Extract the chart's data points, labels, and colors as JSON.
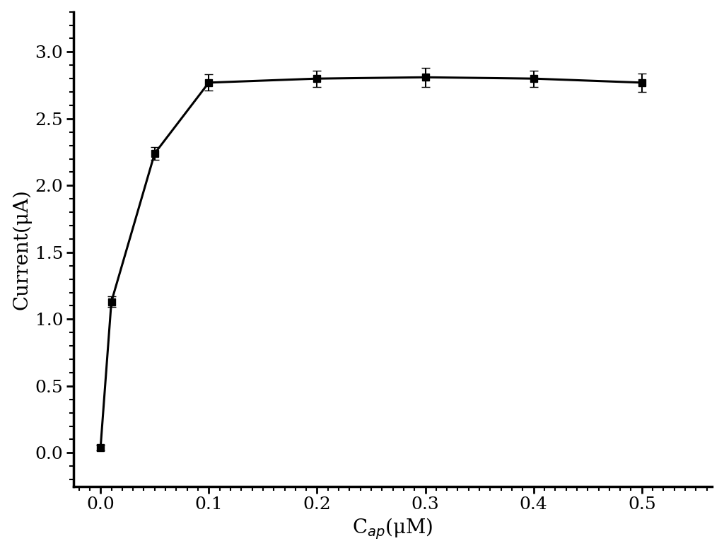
{
  "x": [
    0.0,
    0.01,
    0.05,
    0.1,
    0.2,
    0.3,
    0.4,
    0.5
  ],
  "y": [
    0.04,
    1.13,
    2.24,
    2.77,
    2.8,
    2.81,
    2.8,
    2.77
  ],
  "yerr": [
    0.02,
    0.04,
    0.05,
    0.06,
    0.06,
    0.07,
    0.06,
    0.07
  ],
  "xlabel": "C$_{ap}$(μM)",
  "ylabel": "Current(μA)",
  "xlim": [
    -0.025,
    0.565
  ],
  "ylim": [
    -0.25,
    3.3
  ],
  "xticks": [
    0.0,
    0.1,
    0.2,
    0.3,
    0.4,
    0.5
  ],
  "xtick_labels": [
    "0.0",
    "0.1",
    "0.2",
    "0.3",
    "0.4",
    "0.5"
  ],
  "yticks": [
    0.0,
    0.5,
    1.0,
    1.5,
    2.0,
    2.5,
    3.0
  ],
  "ytick_labels": [
    "0.0",
    "0.5",
    "1.0",
    "1.5",
    "2.0",
    "2.5",
    "3.0"
  ],
  "line_color": "#000000",
  "marker": "s",
  "marker_size": 7,
  "line_width": 2.2,
  "background_color": "#ffffff",
  "xlabel_fontsize": 20,
  "ylabel_fontsize": 20,
  "tick_fontsize": 18,
  "capsize": 4,
  "elinewidth": 1.5,
  "spine_linewidth": 2.5
}
